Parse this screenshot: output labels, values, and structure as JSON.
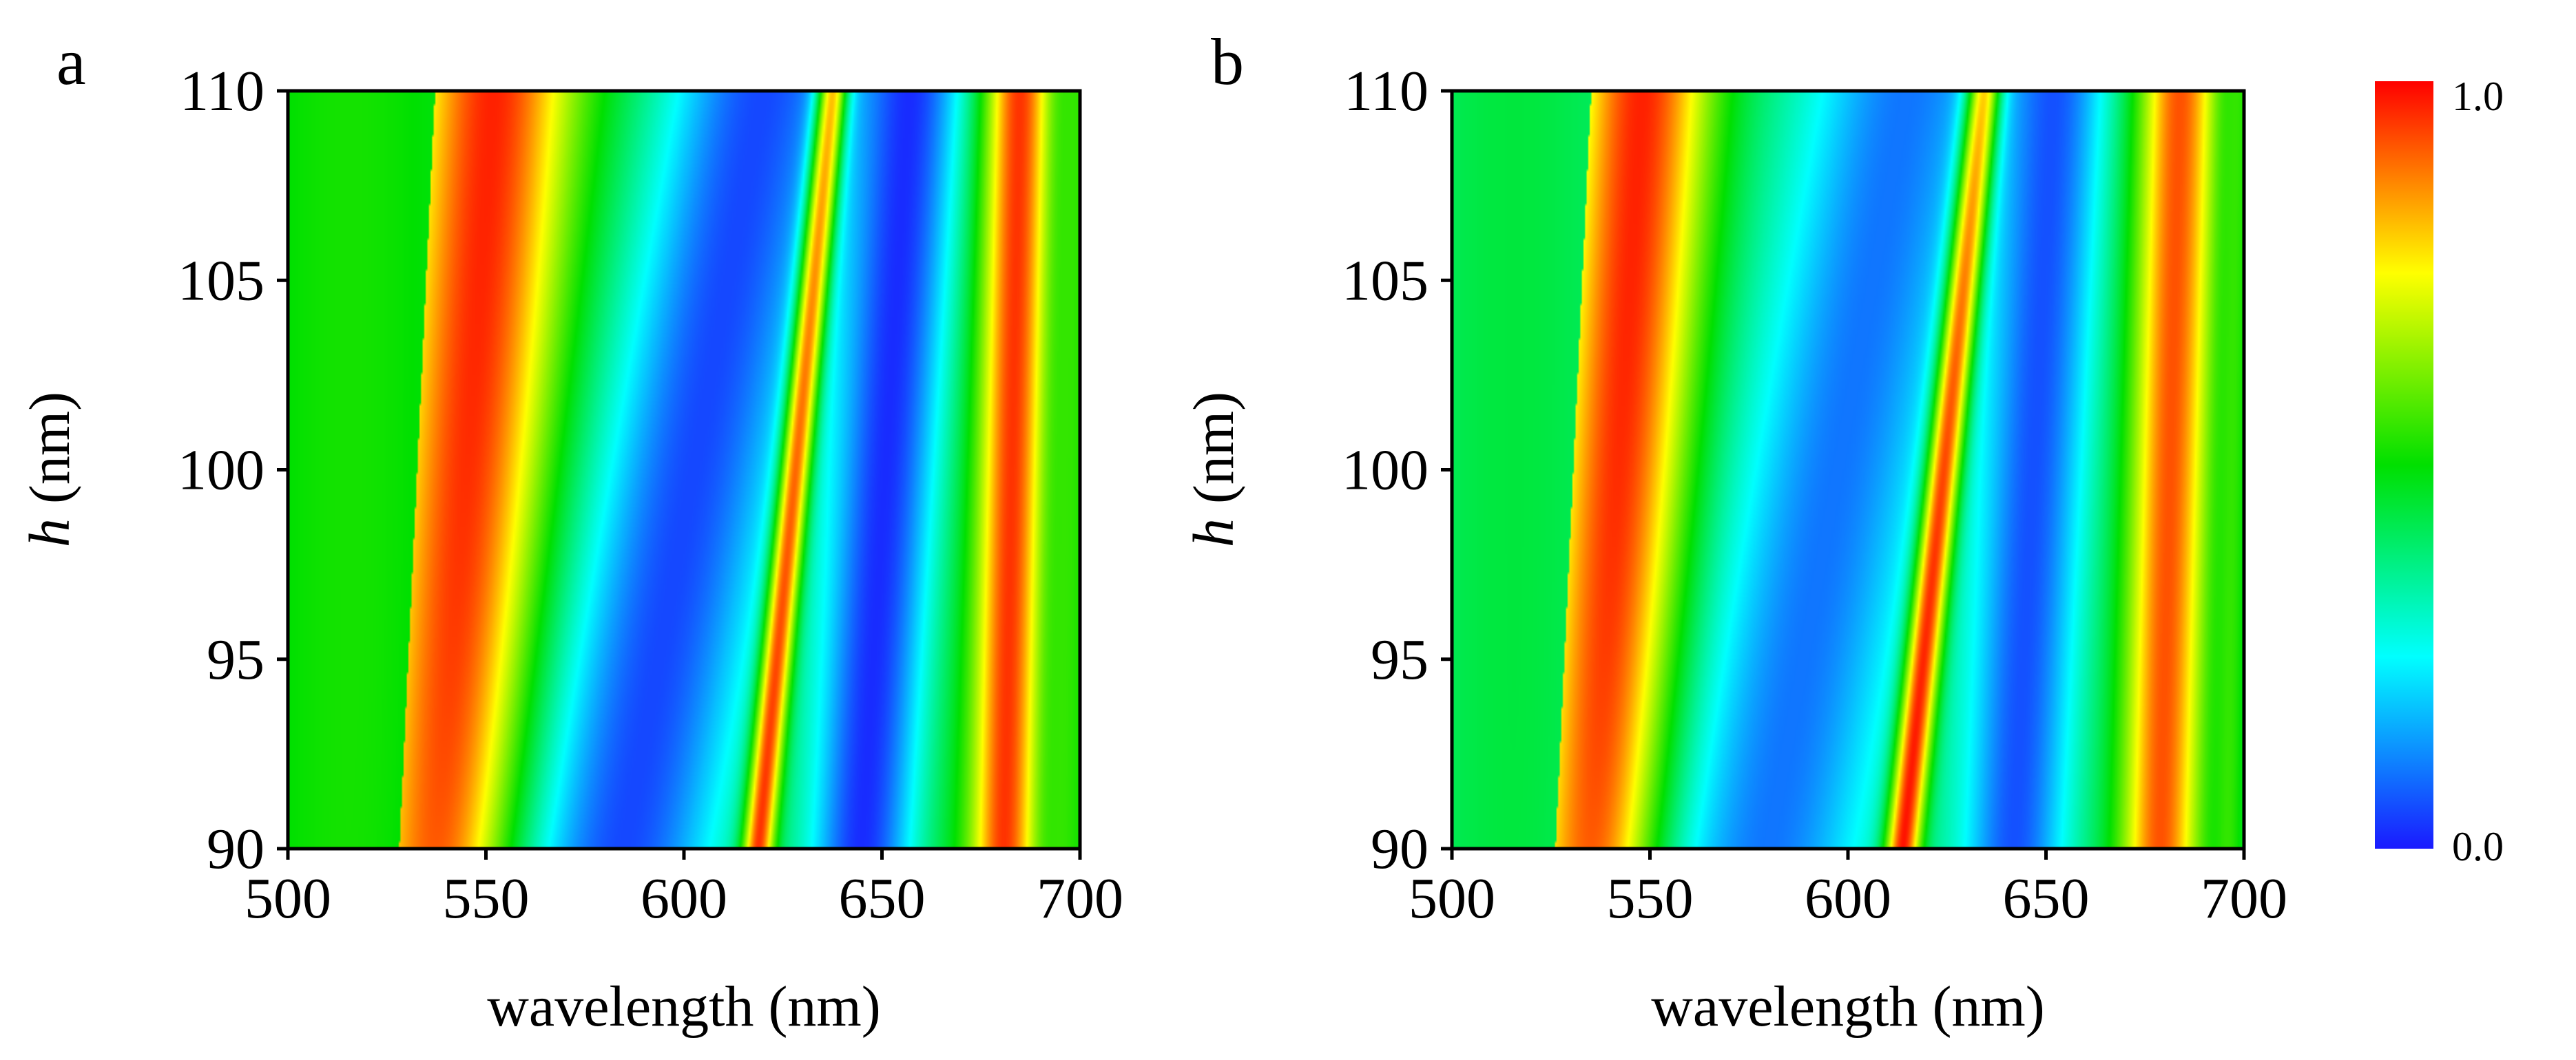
{
  "figure_labels": {
    "panel_a": "a",
    "panel_b": "b"
  },
  "chart_data": [
    {
      "type": "heatmap",
      "panel": "a",
      "xlabel": "wavelength (nm)",
      "ylabel_var": "h",
      "ylabel_unit": " (nm)",
      "xlim": [
        500,
        700
      ],
      "ylim": [
        90,
        110
      ],
      "xticks": [
        500,
        550,
        600,
        650,
        700
      ],
      "yticks": [
        90,
        95,
        100,
        105,
        110
      ],
      "background_value": 0.5,
      "bands": [
        {
          "name": "peak-1",
          "wavelength_at_h90": 540,
          "wavelength_at_h110": 552,
          "width": 20,
          "peak": 0.97
        },
        {
          "name": "dip-1",
          "wavelength_at_h90": 585,
          "wavelength_at_h110": 620,
          "width": 28,
          "peak": 0.05
        },
        {
          "name": "peak-2",
          "wavelength_at_h90": 619,
          "wavelength_at_h110": 638,
          "width": 4,
          "peak": 1.0
        },
        {
          "name": "dip-2",
          "wavelength_at_h90": 645,
          "wavelength_at_h110": 657,
          "width": 15,
          "peak": 0.02
        },
        {
          "name": "peak-3",
          "wavelength_at_h90": 681,
          "wavelength_at_h110": 685,
          "width": 8,
          "peak": 0.95
        },
        {
          "name": "edge-right",
          "wavelength_at_h90": 695,
          "wavelength_at_h110": 698,
          "width": 5,
          "peak": 0.55
        }
      ],
      "sharp_edge": {
        "wavelength_at_h90": 528,
        "wavelength_at_h110": 537
      }
    },
    {
      "type": "heatmap",
      "panel": "b",
      "xlabel": "wavelength (nm)",
      "ylabel_var": "h",
      "ylabel_unit": " (nm)",
      "xlim": [
        500,
        700
      ],
      "ylim": [
        90,
        110
      ],
      "xticks": [
        500,
        550,
        600,
        650,
        700
      ],
      "yticks": [
        90,
        95,
        100,
        105,
        110
      ],
      "background_value": 0.42,
      "bands": [
        {
          "name": "peak-1",
          "wavelength_at_h90": 537,
          "wavelength_at_h110": 548,
          "width": 18,
          "peak": 0.97
        },
        {
          "name": "dip-1",
          "wavelength_at_h90": 580,
          "wavelength_at_h110": 615,
          "width": 27,
          "peak": 0.1
        },
        {
          "name": "peak-2",
          "wavelength_at_h90": 614,
          "wavelength_at_h110": 635,
          "width": 4.5,
          "peak": 1.0
        },
        {
          "name": "dip-2",
          "wavelength_at_h90": 642,
          "wavelength_at_h110": 652,
          "width": 14,
          "peak": 0.06
        },
        {
          "name": "peak-3",
          "wavelength_at_h90": 679,
          "wavelength_at_h110": 684,
          "width": 10,
          "peak": 0.92
        },
        {
          "name": "edge-right",
          "wavelength_at_h90": 696,
          "wavelength_at_h110": 698,
          "width": 4,
          "peak": 0.55
        }
      ],
      "sharp_edge": {
        "wavelength_at_h90": 526,
        "wavelength_at_h110": 535
      }
    }
  ],
  "colorbar": {
    "min_label": "0.0",
    "max_label": "1.0",
    "min": 0.0,
    "max": 1.0,
    "colormap": "jet",
    "colors": [
      "#1a1aff",
      "#00ffff",
      "#00e000",
      "#ffff00",
      "#ff0000"
    ]
  }
}
